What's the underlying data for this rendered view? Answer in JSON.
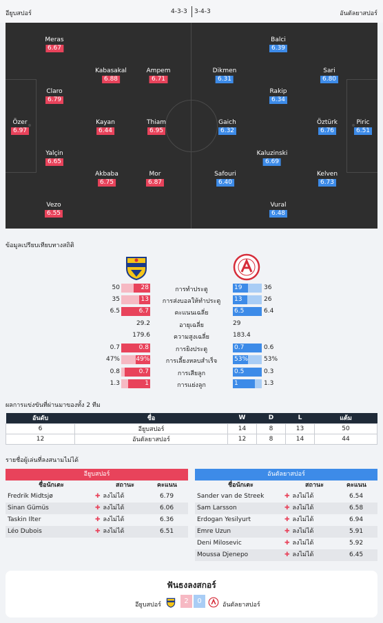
{
  "header": {
    "home_team": "อียูบสปอร์",
    "away_team": "อันตัลยาสปอร์",
    "home_formation": "4-3-3",
    "away_formation": "3-4-3"
  },
  "home_players": [
    {
      "name": "Meras",
      "rating": "6.67"
    },
    {
      "name": "Kabasakal",
      "rating": "6.88"
    },
    {
      "name": "Ampem",
      "rating": "6.71"
    },
    {
      "name": "Claro",
      "rating": "6.79"
    },
    {
      "name": "Özer",
      "rating": "6.97"
    },
    {
      "name": "Kayan",
      "rating": "6.44"
    },
    {
      "name": "Thiam",
      "rating": "6.95"
    },
    {
      "name": "Yalçin",
      "rating": "6.65"
    },
    {
      "name": "Akbaba",
      "rating": "6.75"
    },
    {
      "name": "Mor",
      "rating": "6.87"
    },
    {
      "name": "Vezo",
      "rating": "6.55"
    }
  ],
  "away_players": [
    {
      "name": "Balci",
      "rating": "6.39"
    },
    {
      "name": "Dikmen",
      "rating": "6.31"
    },
    {
      "name": "Sari",
      "rating": "6.80"
    },
    {
      "name": "Rakip",
      "rating": "6.34"
    },
    {
      "name": "Gaich",
      "rating": "6.32"
    },
    {
      "name": "Öztürk",
      "rating": "6.76"
    },
    {
      "name": "Piric",
      "rating": "6.51"
    },
    {
      "name": "Kaluzinski",
      "rating": "6.69"
    },
    {
      "name": "Safouri",
      "rating": "6.40"
    },
    {
      "name": "Kelven",
      "rating": "6.73"
    },
    {
      "name": "Vural",
      "rating": "6.48"
    }
  ],
  "stats": {
    "title": "ข้อมูลเปรียบเทียบทางสถิติ",
    "rows": [
      {
        "label": "การทำประตู",
        "home_avg": "50",
        "home": "28",
        "away": "19",
        "away_avg": "36",
        "home_frac": 0.56,
        "away_frac": 0.53
      },
      {
        "label": "การส่งบอลให้ทำประตู",
        "home_avg": "35",
        "home": "13",
        "away": "13",
        "away_avg": "26",
        "home_frac": 0.37,
        "away_frac": 0.5
      },
      {
        "label": "คะแนนเฉลี่ย",
        "home_avg": "6.5",
        "home": "6.7",
        "away": "6.5",
        "away_avg": "6.4",
        "home_frac": 1.0,
        "away_frac": 1.0
      },
      {
        "label": "อายุเฉลี่ย",
        "home_plain": "29.2",
        "away_plain": "29"
      },
      {
        "label": "ความสูงเฉลี่ย",
        "home_plain": "179.6",
        "away_plain": "183.4"
      },
      {
        "label": "การยิงประตู",
        "home_avg": "0.7",
        "home": "0.8",
        "away": "0.7",
        "away_avg": "0.6",
        "home_frac": 1.0,
        "away_frac": 1.0
      },
      {
        "label": "การเลี้ยงหลบสำเร็จ",
        "home_avg": "47%",
        "home": "49%",
        "away": "53%",
        "away_avg": "53%",
        "home_frac": 0.49,
        "away_frac": 0.53
      },
      {
        "label": "การเสียลูก",
        "home_avg": "0.8",
        "home": "0.7",
        "away": "0.5",
        "away_avg": "0.3",
        "home_frac": 0.88,
        "away_frac": 1.0
      },
      {
        "label": "การแย่งลูก",
        "home_avg": "1.3",
        "home": "1",
        "away": "1",
        "away_avg": "1.3",
        "home_frac": 0.77,
        "away_frac": 0.77
      }
    ]
  },
  "h2h": {
    "title": "ผลการแข่งขันที่ผ่านมาของทั้ง 2 ทีม",
    "columns": [
      "อันดับ",
      "ชื่อ",
      "W",
      "D",
      "L",
      "แต้ม"
    ],
    "rows": [
      [
        "6",
        "อียูบสปอร์",
        "14",
        "8",
        "13",
        "50"
      ],
      [
        "12",
        "อันตัลยาสปอร์",
        "12",
        "8",
        "14",
        "44"
      ]
    ]
  },
  "injuries": {
    "title": "รายชื่อผู้เล่นที่ลงสนามไม่ได้",
    "columns": [
      "ชื่อนักเตะ",
      "สถานะ",
      "คะแนน"
    ],
    "home_team": "อียูบสปอร์",
    "away_team": "อันตัลยาสปอร์",
    "home": [
      {
        "name": "Fredrik Midtsjø",
        "status": "ลงไม่ได้",
        "rating": "6.79"
      },
      {
        "name": "Sinan Gümüs",
        "status": "ลงไม่ได้",
        "rating": "6.06"
      },
      {
        "name": "Taskin Ilter",
        "status": "ลงไม่ได้",
        "rating": "6.36"
      },
      {
        "name": "Léo Dubois",
        "status": "ลงไม่ได้",
        "rating": "6.51"
      }
    ],
    "away": [
      {
        "name": "Sander van de Streek",
        "status": "ลงไม่ได้",
        "rating": "6.54"
      },
      {
        "name": "Sam Larsson",
        "status": "ลงไม่ได้",
        "rating": "6.58"
      },
      {
        "name": "Erdogan Yesilyurt",
        "status": "ลงไม่ได้",
        "rating": "6.94"
      },
      {
        "name": "Emre Uzun",
        "status": "ลงไม่ได้",
        "rating": "5.91"
      },
      {
        "name": "Deni Milosevic",
        "status": "ลงไม่ได้",
        "rating": "5.92"
      },
      {
        "name": "Moussa Djenepo",
        "status": "ลงไม่ได้",
        "rating": "6.45"
      }
    ]
  },
  "prediction": {
    "title": "ฟันธงลงสกอร์",
    "home_team": "อียูบสปอร์",
    "away_team": "อันตัลยาสปอร์",
    "home_score": "2",
    "away_score": "0"
  },
  "colors": {
    "home": "#e8435b",
    "away": "#3d8be8"
  }
}
